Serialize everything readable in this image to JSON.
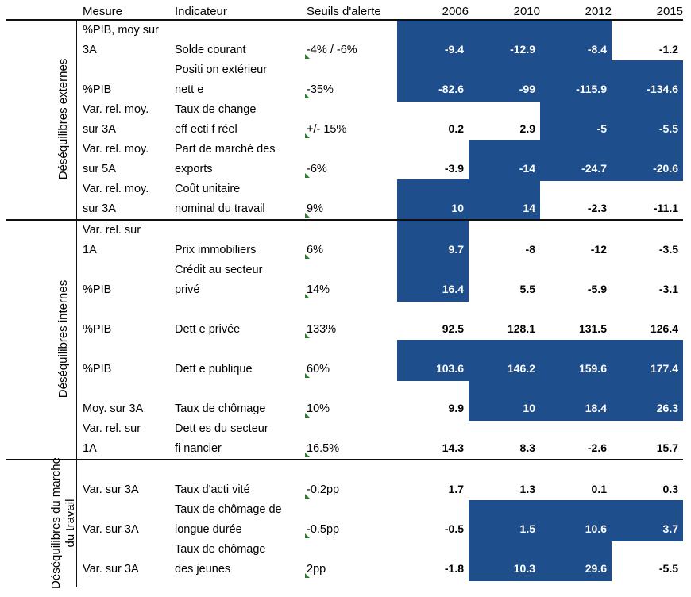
{
  "header": {
    "mesure": "Mesure",
    "indicateur": "Indicateur",
    "seuils": "Seuils d'alerte",
    "years": [
      "2006",
      "2010",
      "2012",
      "2015"
    ]
  },
  "groups": [
    {
      "label": "Déséquilibres externes"
    },
    {
      "label": "Déséquilibres internes"
    },
    {
      "label": "Déséquilibres du marché du travail"
    }
  ],
  "rows": [
    {
      "mesure": [
        "%PIB, moy sur",
        "3A"
      ],
      "indicateur": [
        "",
        "Solde courant"
      ],
      "seuil": "-4% / -6%",
      "values": [
        "-9.4",
        "-12.9",
        "-8.4",
        "-1.2"
      ],
      "highlight": [
        true,
        true,
        true,
        false
      ]
    },
    {
      "mesure": [
        "",
        "%PIB"
      ],
      "indicateur": [
        "Positi  on extérieur",
        "nett  e"
      ],
      "seuil": "-35%",
      "values": [
        "-82.6",
        "-99",
        "-115.9",
        "-134.6"
      ],
      "highlight": [
        true,
        true,
        true,
        true
      ]
    },
    {
      "mesure": [
        "Var. rel. moy.",
        "sur 3A"
      ],
      "indicateur": [
        "Taux de change",
        "eff  ecti  f réel"
      ],
      "seuil": "+/- 15%",
      "values": [
        "0.2",
        "2.9",
        "-5",
        "-5.5"
      ],
      "highlight": [
        false,
        false,
        true,
        true
      ]
    },
    {
      "mesure": [
        "Var. rel. moy.",
        "sur 5A"
      ],
      "indicateur": [
        "Part de marché des",
        "exports"
      ],
      "seuil": "-6%",
      "values": [
        "-3.9",
        "-14",
        "-24.7",
        "-20.6"
      ],
      "highlight": [
        false,
        true,
        true,
        true
      ]
    },
    {
      "mesure": [
        "Var. rel. moy.",
        "sur 3A"
      ],
      "indicateur": [
        "Coût unitaire",
        "nominal du travail"
      ],
      "seuil": "9%",
      "values": [
        "10",
        "14",
        "-2.3",
        "-11.1"
      ],
      "highlight": [
        true,
        true,
        false,
        false
      ]
    },
    {
      "mesure": [
        "Var. rel. sur",
        "1A"
      ],
      "indicateur": [
        "",
        "Prix immobiliers"
      ],
      "seuil": "6%",
      "values": [
        "9.7",
        "-8",
        "-12",
        "-3.5"
      ],
      "highlight": [
        true,
        false,
        false,
        false
      ]
    },
    {
      "mesure": [
        "",
        "%PIB"
      ],
      "indicateur": [
        "Crédit au secteur",
        "privé"
      ],
      "seuil": "14%",
      "values": [
        "16.4",
        "5.5",
        "-5.9",
        "-3.1"
      ],
      "highlight": [
        true,
        false,
        false,
        false
      ]
    },
    {
      "mesure": [
        "",
        "%PIB"
      ],
      "indicateur": [
        "",
        "Dett  e privée"
      ],
      "seuil": "133%",
      "values": [
        "92.5",
        "128.1",
        "131.5",
        "126.4"
      ],
      "highlight": [
        false,
        false,
        false,
        false
      ]
    },
    {
      "mesure": [
        "",
        "%PIB"
      ],
      "indicateur": [
        "",
        "Dett  e publique"
      ],
      "seuil": "60%",
      "values": [
        "103.6",
        "146.2",
        "159.6",
        "177.4"
      ],
      "highlight": [
        true,
        true,
        true,
        true
      ]
    },
    {
      "mesure": [
        "",
        "Moy. sur 3A"
      ],
      "indicateur": [
        "",
        "Taux de chômage"
      ],
      "seuil": "10%",
      "values": [
        "9.9",
        "10",
        "18.4",
        "26.3"
      ],
      "highlight": [
        false,
        true,
        true,
        true
      ]
    },
    {
      "mesure": [
        "Var. rel. sur",
        "1A"
      ],
      "indicateur": [
        "Dett  es du secteur",
        "fi  nancier"
      ],
      "seuil": "16.5%",
      "values": [
        "14.3",
        "8.3",
        "-2.6",
        "15.7"
      ],
      "highlight": [
        false,
        false,
        false,
        false
      ]
    },
    {
      "mesure": [
        "",
        "Var. sur 3A"
      ],
      "indicateur": [
        "",
        "Taux d'acti  vité"
      ],
      "seuil": "-0.2pp",
      "values": [
        "1.7",
        "1.3",
        "0.1",
        "0.3"
      ],
      "highlight": [
        false,
        false,
        false,
        false
      ]
    },
    {
      "mesure": [
        "",
        "Var. sur 3A"
      ],
      "indicateur": [
        "Taux de chômage de",
        "longue durée"
      ],
      "seuil": "-0.5pp",
      "values": [
        "-0.5",
        "1.5",
        "10.6",
        "3.7"
      ],
      "highlight": [
        false,
        true,
        true,
        true
      ]
    },
    {
      "mesure": [
        "",
        "Var. sur 3A"
      ],
      "indicateur": [
        "Taux de chômage",
        "des jeunes"
      ],
      "seuil": "2pp",
      "values": [
        "-1.8",
        "10.3",
        "29.6",
        "-5.5"
      ],
      "highlight": [
        false,
        true,
        true,
        false
      ]
    }
  ],
  "colors": {
    "highlight": "#1f4e8c",
    "marker": "#2e7d32"
  }
}
